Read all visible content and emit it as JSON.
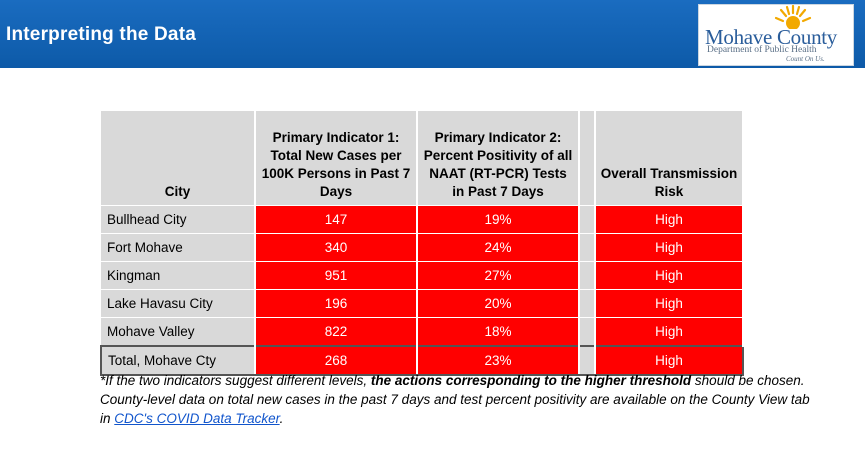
{
  "header": {
    "title": "Interpreting the Data",
    "logo": {
      "name": "Mohave County",
      "department": "Department of Public Health",
      "tagline": "Count On Us."
    }
  },
  "table": {
    "columns": [
      "City",
      "Primary Indicator 1: Total New Cases per 100K Persons in Past 7 Days",
      "Primary Indicator 2: Percent Positivity of all NAAT (RT-PCR) Tests in Past 7 Days",
      "",
      "Overall Transmission Risk"
    ],
    "rows": [
      {
        "city": "Bullhead City",
        "cases": "147",
        "positivity": "19%",
        "risk": "High"
      },
      {
        "city": "Fort Mohave",
        "cases": "340",
        "positivity": "24%",
        "risk": "High"
      },
      {
        "city": "Kingman",
        "cases": "951",
        "positivity": "27%",
        "risk": "High"
      },
      {
        "city": "Lake Havasu City",
        "cases": "196",
        "positivity": "20%",
        "risk": "High"
      },
      {
        "city": "Mohave Valley",
        "cases": "822",
        "positivity": "18%",
        "risk": "High"
      },
      {
        "city": "Total, Mohave Cty",
        "cases": "268",
        "positivity": "23%",
        "risk": "High"
      }
    ],
    "colors": {
      "risk_high": "#ff0000",
      "header_bg": "#d9d9d9"
    }
  },
  "footnote": {
    "part1": "*If the two indicators suggest different levels, ",
    "bold": "the actions corresponding to the higher threshold",
    "part2": " should be chosen. County-level data on total new cases in the past 7 days and test percent positivity are available on the County View tab in ",
    "link": "CDC's COVID Data Tracker",
    "part3": "."
  },
  "colors": {
    "header_bar": "#0d5aa8",
    "brand_blue": "#2a5d9b",
    "sun": "#f2a900"
  }
}
